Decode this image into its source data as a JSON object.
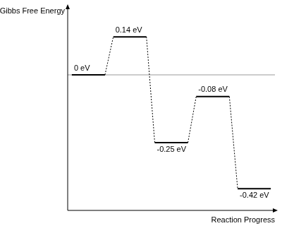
{
  "chart_data": {
    "type": "line",
    "x_label": "Reaction Progress",
    "y_label": "Gibbs Free Energy",
    "categories": [
      null,
      null,
      null,
      null,
      null
    ],
    "values": [
      0,
      0.14,
      -0.25,
      -0.08,
      -0.42
    ],
    "value_labels": [
      "0 eV",
      "0.14 eV",
      "-0.25 eV",
      "-0.08 eV",
      "-0.42 eV"
    ],
    "data_labels": true,
    "ylim": [
      -0.5,
      0.25
    ],
    "tick_labels": false,
    "grid": false,
    "color": "#000000"
  }
}
